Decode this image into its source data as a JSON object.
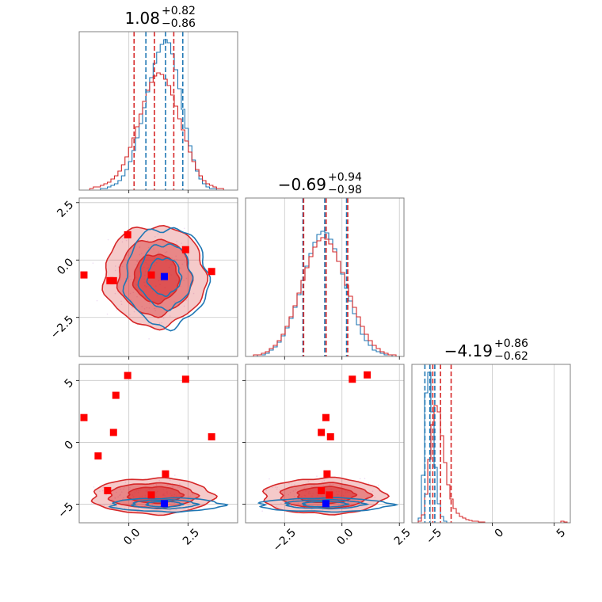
{
  "chart_data": {
    "type": "corner",
    "colors": {
      "red_series": "#d62728",
      "blue_series": "#1f77b4",
      "red_marker": "#ff0000",
      "blue_marker": "#0000ff",
      "grid": "#c8c8c8",
      "frame": "#808080"
    },
    "parameters": [
      {
        "range": [
          -2.1,
          4.6
        ],
        "ticks": [
          0.0,
          2.5
        ],
        "tick_labels": [
          "0.0",
          "2.5"
        ]
      },
      {
        "range": [
          -4.2,
          2.7
        ],
        "ticks": [
          -2.5,
          0.0,
          2.5
        ],
        "tick_labels": [
          "−2.5",
          "0.0",
          "2.5"
        ]
      },
      {
        "range": [
          -6.5,
          6.3
        ],
        "ticks": [
          -5,
          0,
          5
        ],
        "tick_labels": [
          "−5",
          "0",
          "5"
        ]
      }
    ],
    "titles": [
      {
        "value": "1.08",
        "upper": "+0.82",
        "lower": "−0.86"
      },
      {
        "value": "−0.69",
        "upper": "+0.94",
        "lower": "−0.98"
      },
      {
        "value": "−4.19",
        "upper": "+0.86",
        "lower": "−0.62"
      }
    ],
    "diagonal": [
      {
        "bins": [
          -2.1,
          4.6
        ],
        "red_hist": [
          0,
          0,
          0,
          0.01,
          0.02,
          0.02,
          0.03,
          0.04,
          0.05,
          0.07,
          0.09,
          0.12,
          0.16,
          0.21,
          0.27,
          0.33,
          0.4,
          0.48,
          0.56,
          0.63,
          0.68,
          0.72,
          0.74,
          0.73,
          0.7,
          0.66,
          0.6,
          0.53,
          0.45,
          0.38,
          0.31,
          0.24,
          0.18,
          0.13,
          0.09,
          0.06,
          0.04,
          0.03,
          0.02,
          0.01,
          0.01,
          0,
          0,
          0,
          0
        ],
        "blue_hist": [
          0,
          0,
          0,
          0,
          0,
          0,
          0.01,
          0.01,
          0.02,
          0.03,
          0.04,
          0.06,
          0.09,
          0.13,
          0.18,
          0.25,
          0.33,
          0.42,
          0.52,
          0.62,
          0.71,
          0.8,
          0.87,
          0.92,
          0.95,
          0.93,
          0.86,
          0.76,
          0.64,
          0.51,
          0.39,
          0.28,
          0.19,
          0.12,
          0.07,
          0.04,
          0.02,
          0.01,
          0.01,
          0,
          0,
          0,
          0,
          0,
          0
        ],
        "red_quantiles": [
          0.22,
          1.08,
          1.9
        ],
        "blue_quantiles": [
          0.72,
          1.55,
          2.28
        ]
      },
      {
        "bins": [
          -4.2,
          2.7
        ],
        "red_hist": [
          0,
          0,
          0.01,
          0.01,
          0.02,
          0.03,
          0.05,
          0.07,
          0.1,
          0.14,
          0.19,
          0.25,
          0.32,
          0.4,
          0.48,
          0.56,
          0.63,
          0.69,
          0.73,
          0.75,
          0.74,
          0.71,
          0.66,
          0.6,
          0.53,
          0.45,
          0.38,
          0.31,
          0.25,
          0.19,
          0.14,
          0.1,
          0.07,
          0.05,
          0.03,
          0.02,
          0.01,
          0.01,
          0,
          0
        ],
        "blue_hist": [
          0,
          0,
          0,
          0.01,
          0.01,
          0.02,
          0.04,
          0.06,
          0.09,
          0.13,
          0.18,
          0.24,
          0.31,
          0.39,
          0.48,
          0.57,
          0.65,
          0.72,
          0.77,
          0.79,
          0.78,
          0.74,
          0.68,
          0.6,
          0.52,
          0.43,
          0.35,
          0.27,
          0.2,
          0.14,
          0.1,
          0.07,
          0.04,
          0.03,
          0.02,
          0.01,
          0.01,
          0,
          0,
          0
        ],
        "red_quantiles": [
          -1.67,
          -0.69,
          0.25
        ],
        "blue_quantiles": [
          -1.7,
          -0.75,
          0.2
        ]
      },
      {
        "bins": [
          -6.5,
          6.3
        ],
        "red_hist": [
          0,
          0,
          0.01,
          0.05,
          0.18,
          0.4,
          0.62,
          0.74,
          0.7,
          0.55,
          0.38,
          0.24,
          0.15,
          0.09,
          0.06,
          0.04,
          0.03,
          0.02,
          0.015,
          0.01,
          0.01,
          0.005,
          0.005,
          0,
          0,
          0,
          0,
          0,
          0,
          0,
          0,
          0,
          0,
          0,
          0,
          0,
          0,
          0,
          0,
          0,
          0,
          0,
          0,
          0,
          0,
          0,
          0,
          0.01,
          0.005,
          0
        ],
        "blue_hist": [
          0,
          0,
          0.03,
          0.3,
          0.82,
          0.95,
          0.7,
          0.35,
          0.12,
          0.04,
          0.01,
          0,
          0,
          0,
          0,
          0,
          0,
          0,
          0,
          0,
          0,
          0,
          0,
          0,
          0,
          0,
          0,
          0,
          0,
          0,
          0,
          0,
          0,
          0,
          0,
          0,
          0,
          0,
          0,
          0,
          0,
          0,
          0,
          0,
          0,
          0,
          0,
          0,
          0,
          0
        ],
        "red_quantiles": [
          -4.81,
          -4.19,
          -3.33
        ],
        "blue_quantiles": [
          -5.45,
          -5.05,
          -4.65
        ]
      }
    ],
    "pairs": [
      {
        "x_param": 0,
        "y_param": 1,
        "red_contours": [
          {
            "cx": 1.1,
            "cy": -0.7,
            "rx": 2.15,
            "ry": 2.2,
            "level": "outer"
          },
          {
            "cx": 1.1,
            "cy": -0.75,
            "rx": 1.55,
            "ry": 1.65,
            "level": "mid"
          },
          {
            "cx": 1.15,
            "cy": -0.8,
            "rx": 0.95,
            "ry": 1.05,
            "level": "inner"
          }
        ],
        "blue_contours": [
          {
            "cx": 1.6,
            "cy": -0.75,
            "rx": 1.75,
            "ry": 2.15
          },
          {
            "cx": 1.55,
            "cy": -0.7,
            "rx": 1.1,
            "ry": 1.4
          },
          {
            "cx": 1.5,
            "cy": -0.72,
            "rx": 0.7,
            "ry": 0.8
          }
        ],
        "red_points": [
          [
            -1.9,
            -0.65
          ],
          [
            -0.8,
            -0.9
          ],
          [
            -0.65,
            -0.9
          ],
          [
            -0.05,
            1.1
          ],
          [
            0.95,
            -0.65
          ],
          [
            2.4,
            0.45
          ],
          [
            3.5,
            -0.5
          ]
        ],
        "blue_points": [
          [
            1.5,
            -0.72
          ]
        ]
      },
      {
        "x_param": 0,
        "y_param": 2,
        "red_contours": [
          {
            "cx": 1.0,
            "cy": -4.35,
            "rx": 2.55,
            "ry": 1.45,
            "level": "outer"
          },
          {
            "cx": 1.0,
            "cy": -4.3,
            "rx": 1.85,
            "ry": 1.0,
            "level": "mid"
          },
          {
            "cx": 1.1,
            "cy": -4.25,
            "rx": 1.15,
            "ry": 0.65,
            "level": "inner"
          }
        ],
        "blue_contours": [
          {
            "cx": 1.6,
            "cy": -5.05,
            "rx": 2.35,
            "ry": 0.55
          },
          {
            "cx": 1.5,
            "cy": -5.0,
            "rx": 1.35,
            "ry": 0.35
          },
          {
            "cx": 1.5,
            "cy": -5.0,
            "rx": 0.75,
            "ry": 0.22
          }
        ],
        "red_points": [
          [
            -1.9,
            2.0
          ],
          [
            -1.3,
            -1.1
          ],
          [
            -0.9,
            -3.9
          ],
          [
            -0.65,
            0.8
          ],
          [
            -0.55,
            3.8
          ],
          [
            -0.05,
            5.4
          ],
          [
            0.95,
            -4.25
          ],
          [
            1.55,
            -2.55
          ],
          [
            2.4,
            5.1
          ],
          [
            3.5,
            0.45
          ]
        ],
        "blue_points": [
          [
            1.5,
            -4.95
          ]
        ]
      },
      {
        "x_param": 1,
        "y_param": 2,
        "red_contours": [
          {
            "cx": -0.8,
            "cy": -4.35,
            "rx": 2.65,
            "ry": 1.45,
            "level": "outer"
          },
          {
            "cx": -0.75,
            "cy": -4.3,
            "rx": 1.95,
            "ry": 1.0,
            "level": "mid"
          },
          {
            "cx": -0.7,
            "cy": -4.25,
            "rx": 1.25,
            "ry": 0.65,
            "level": "inner"
          }
        ],
        "blue_contours": [
          {
            "cx": -0.75,
            "cy": -5.05,
            "rx": 2.85,
            "ry": 0.55
          },
          {
            "cx": -0.75,
            "cy": -5.0,
            "rx": 1.7,
            "ry": 0.35
          },
          {
            "cx": -0.75,
            "cy": -5.0,
            "rx": 0.95,
            "ry": 0.22
          }
        ],
        "red_points": [
          [
            -0.9,
            0.8
          ],
          [
            -0.9,
            -3.9
          ],
          [
            -0.7,
            2.0
          ],
          [
            -0.65,
            -2.55
          ],
          [
            -0.5,
            0.45
          ],
          [
            -0.55,
            -4.25
          ],
          [
            0.45,
            5.1
          ],
          [
            1.1,
            5.45
          ]
        ],
        "blue_points": [
          [
            -0.7,
            -4.95
          ]
        ]
      }
    ]
  }
}
